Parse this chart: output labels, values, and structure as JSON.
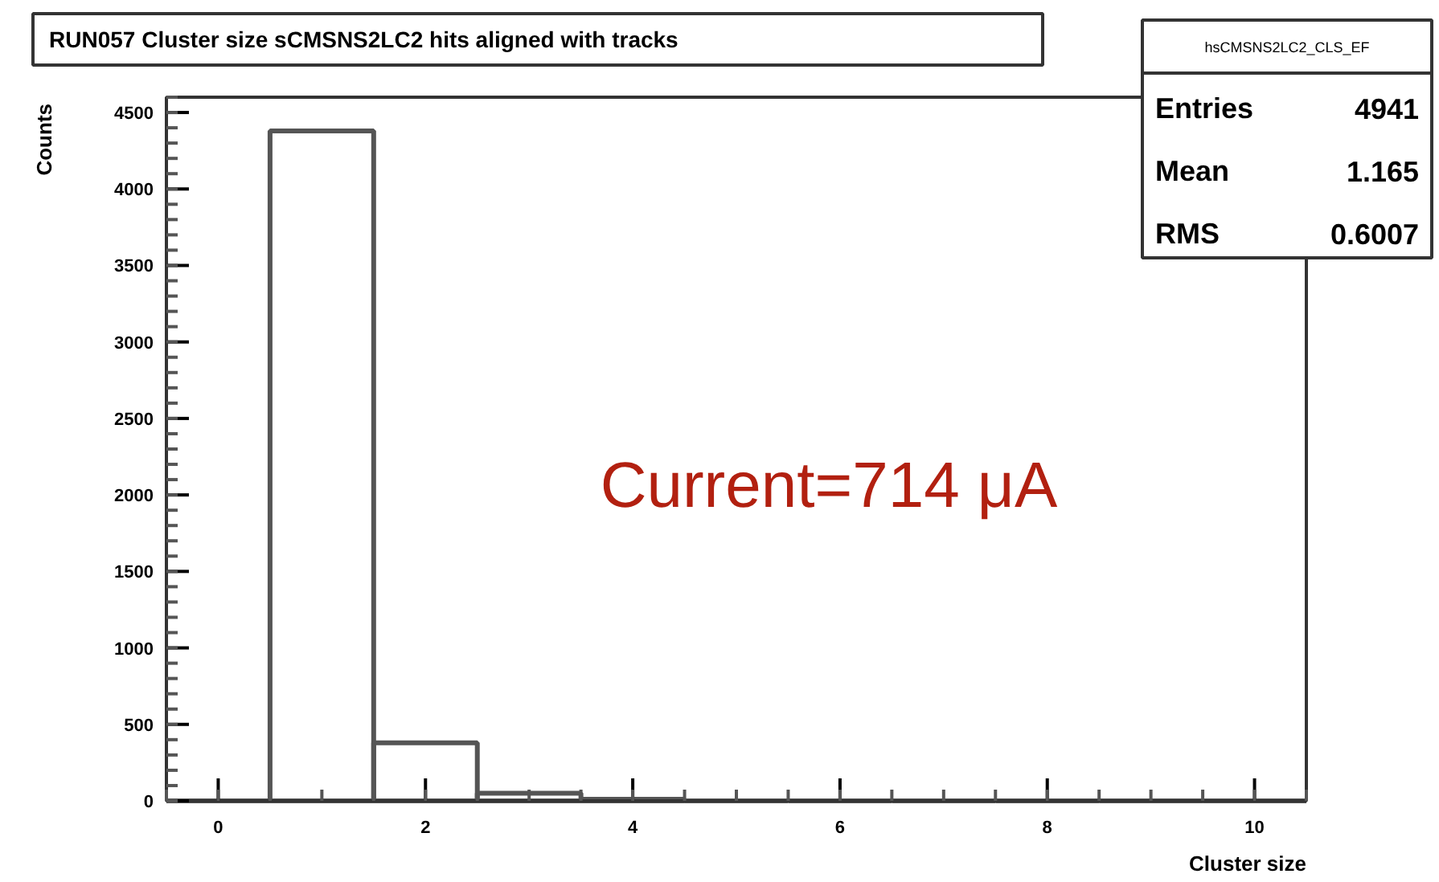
{
  "chart_data": {
    "type": "histogram",
    "title": "RUN057 Cluster size sCMSNS2LC2 hits aligned with tracks",
    "xlabel": "Cluster size",
    "ylabel": "Counts",
    "bins": [
      -0.5,
      0.5,
      1.5,
      2.5,
      3.5,
      4.5,
      5.5,
      6.5,
      7.5,
      8.5,
      9.5,
      10.5
    ],
    "values": [
      0,
      4380,
      380,
      50,
      10,
      0,
      0,
      0,
      0,
      0,
      0
    ],
    "color": "#555555",
    "xlim": [
      -0.5,
      10.5
    ],
    "ylim": [
      0,
      4600
    ],
    "xticks": [
      0,
      2,
      4,
      6,
      8,
      10
    ],
    "yticks": [
      0,
      500,
      1000,
      1500,
      2000,
      2500,
      3000,
      3500,
      4000,
      4500
    ],
    "grid": false,
    "annotations": [
      "hsCMSNS2LC2_CLS_EF",
      "Entries",
      "4941",
      "Mean",
      "1.165",
      "RMS",
      "0.6007",
      "Current=714 μA"
    ]
  }
}
